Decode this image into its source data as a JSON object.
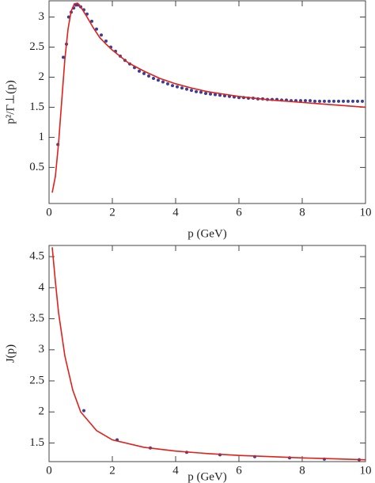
{
  "chart_data": [
    {
      "type": "scatter",
      "x_label": "p (GeV)",
      "y_label": "p²/Γ⊥(p)",
      "xlim": [
        0,
        10
      ],
      "ylim": [
        -0.1,
        3.27
      ],
      "xticks": [
        0,
        2,
        4,
        6,
        8,
        10
      ],
      "yticks": [
        0.5,
        1.0,
        1.5,
        2.0,
        2.5,
        3.0
      ],
      "series": [
        {
          "style": "markers",
          "color": "#3b3f96",
          "x": [
            0.28,
            0.45,
            0.55,
            0.62,
            0.7,
            0.78,
            0.85,
            0.92,
            1.0,
            1.1,
            1.2,
            1.35,
            1.5,
            1.65,
            1.8,
            1.95,
            2.1,
            2.25,
            2.4,
            2.55,
            2.7,
            2.85,
            3.0,
            3.15,
            3.3,
            3.45,
            3.6,
            3.75,
            3.9,
            4.05,
            4.2,
            4.35,
            4.5,
            4.65,
            4.8,
            4.95,
            5.1,
            5.25,
            5.4,
            5.55,
            5.7,
            5.85,
            6.0,
            6.15,
            6.3,
            6.45,
            6.6,
            6.75,
            6.9,
            7.05,
            7.2,
            7.35,
            7.5,
            7.65,
            7.8,
            7.95,
            8.1,
            8.25,
            8.4,
            8.55,
            8.7,
            8.85,
            9.0,
            9.15,
            9.3,
            9.45,
            9.6,
            9.75,
            9.9
          ],
          "values": [
            0.88,
            2.33,
            2.55,
            3.0,
            3.08,
            3.15,
            3.2,
            3.2,
            3.17,
            3.12,
            3.05,
            2.93,
            2.8,
            2.7,
            2.6,
            2.5,
            2.43,
            2.35,
            2.28,
            2.22,
            2.16,
            2.1,
            2.06,
            2.02,
            1.98,
            1.95,
            1.92,
            1.89,
            1.86,
            1.84,
            1.82,
            1.8,
            1.78,
            1.76,
            1.75,
            1.73,
            1.72,
            1.71,
            1.7,
            1.69,
            1.68,
            1.67,
            1.66,
            1.66,
            1.65,
            1.65,
            1.64,
            1.64,
            1.63,
            1.63,
            1.63,
            1.62,
            1.62,
            1.61,
            1.61,
            1.61,
            1.61,
            1.61,
            1.6,
            1.6,
            1.6,
            1.6,
            1.6,
            1.6,
            1.6,
            1.6,
            1.6,
            1.6,
            1.6
          ]
        },
        {
          "style": "line",
          "color": "#e0201a",
          "x": [
            0.1,
            0.2,
            0.3,
            0.4,
            0.5,
            0.6,
            0.7,
            0.8,
            0.9,
            1.0,
            1.2,
            1.4,
            1.6,
            1.8,
            2.0,
            2.5,
            3,
            3.5,
            4,
            4.5,
            5,
            5.5,
            6,
            6.5,
            7,
            7.5,
            8,
            8.5,
            9,
            9.5,
            10
          ],
          "values": [
            0.08,
            0.35,
            0.9,
            1.6,
            2.3,
            2.8,
            3.1,
            3.22,
            3.23,
            3.17,
            3.0,
            2.82,
            2.66,
            2.55,
            2.45,
            2.24,
            2.1,
            1.98,
            1.89,
            1.82,
            1.76,
            1.72,
            1.68,
            1.65,
            1.62,
            1.6,
            1.58,
            1.56,
            1.54,
            1.52,
            1.5
          ]
        }
      ]
    },
    {
      "type": "scatter",
      "x_label": "p (GeV)",
      "y_label": "J(p)",
      "xlim": [
        0,
        10
      ],
      "ylim": [
        1.2,
        4.68
      ],
      "xticks": [
        0,
        2,
        4,
        6,
        8,
        10
      ],
      "yticks": [
        1.5,
        2.0,
        2.5,
        3.0,
        3.5,
        4.0,
        4.5
      ],
      "series": [
        {
          "style": "markers",
          "color": "#3b3f96",
          "x": [
            1.1,
            2.15,
            3.2,
            4.35,
            5.4,
            6.5,
            7.6,
            8.7,
            9.8
          ],
          "values": [
            2.02,
            1.55,
            1.42,
            1.35,
            1.31,
            1.28,
            1.26,
            1.24,
            1.23
          ]
        },
        {
          "style": "line",
          "color": "#e0201a",
          "x": [
            0.1,
            0.2,
            0.3,
            0.5,
            0.75,
            1,
            1.5,
            2,
            3,
            4,
            5,
            6,
            7,
            8,
            9,
            10
          ],
          "values": [
            4.65,
            4.1,
            3.6,
            2.9,
            2.35,
            2.0,
            1.7,
            1.55,
            1.43,
            1.37,
            1.33,
            1.3,
            1.28,
            1.26,
            1.245,
            1.23
          ]
        }
      ]
    }
  ]
}
